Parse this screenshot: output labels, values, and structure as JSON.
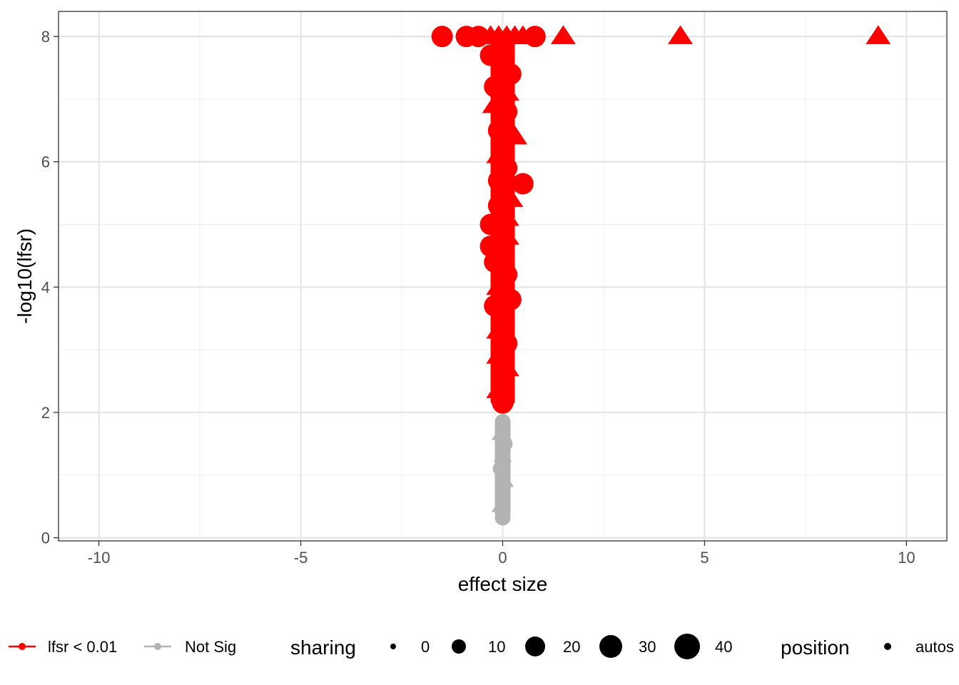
{
  "chart_data": {
    "type": "scatter",
    "title": "",
    "xlabel": "effect size",
    "ylabel": "-log10(lfsr)",
    "xlim": [
      -11,
      11
    ],
    "ylim": [
      -0.05,
      8.4
    ],
    "x_ticks": [
      -10,
      -5,
      0,
      5,
      10
    ],
    "x_tick_labels": [
      "-10",
      "-5",
      "0",
      "5",
      "10"
    ],
    "y_ticks": [
      0,
      2,
      4,
      6,
      8
    ],
    "y_tick_labels": [
      "0",
      "2",
      "4",
      "6",
      "8"
    ],
    "grid": true,
    "legend_position": "bottom",
    "legend": {
      "color_items": [
        {
          "label": "lfsr < 0.01",
          "color": "#ff0000"
        },
        {
          "label": "Not Sig",
          "color": "#b3b3b3"
        }
      ],
      "size_title": "sharing",
      "size_items": [
        "0",
        "10",
        "20",
        "30",
        "40"
      ],
      "shape_title": "position",
      "shape_items": [
        "autos"
      ]
    },
    "series": [
      {
        "name": "lfsr < 0.01",
        "color": "#ff0000",
        "points": [
          {
            "x": -1.5,
            "y": 8.0,
            "shape": "circle"
          },
          {
            "x": -0.9,
            "y": 8.0,
            "shape": "circle"
          },
          {
            "x": -0.6,
            "y": 8.0,
            "shape": "circle"
          },
          {
            "x": -0.3,
            "y": 8.0,
            "shape": "triangle"
          },
          {
            "x": -0.1,
            "y": 8.0,
            "shape": "triangle"
          },
          {
            "x": 0.1,
            "y": 8.0,
            "shape": "triangle"
          },
          {
            "x": 0.3,
            "y": 8.0,
            "shape": "triangle"
          },
          {
            "x": 0.5,
            "y": 8.0,
            "shape": "triangle"
          },
          {
            "x": 0.8,
            "y": 8.0,
            "shape": "circle"
          },
          {
            "x": 1.5,
            "y": 8.0,
            "shape": "triangle"
          },
          {
            "x": 4.4,
            "y": 8.0,
            "shape": "triangle"
          },
          {
            "x": 9.3,
            "y": 8.0,
            "shape": "triangle"
          },
          {
            "x": -0.3,
            "y": 7.7,
            "shape": "circle"
          },
          {
            "x": 0.2,
            "y": 7.4,
            "shape": "circle"
          },
          {
            "x": -0.2,
            "y": 7.2,
            "shape": "circle"
          },
          {
            "x": 0.1,
            "y": 7.1,
            "shape": "triangle"
          },
          {
            "x": -0.2,
            "y": 6.9,
            "shape": "triangle"
          },
          {
            "x": 0.1,
            "y": 6.8,
            "shape": "circle"
          },
          {
            "x": -0.1,
            "y": 6.5,
            "shape": "circle"
          },
          {
            "x": 0.3,
            "y": 6.4,
            "shape": "triangle"
          },
          {
            "x": -0.1,
            "y": 6.1,
            "shape": "triangle"
          },
          {
            "x": 0.1,
            "y": 5.9,
            "shape": "circle"
          },
          {
            "x": -0.1,
            "y": 5.7,
            "shape": "circle"
          },
          {
            "x": 0.5,
            "y": 5.65,
            "shape": "circle"
          },
          {
            "x": 0.2,
            "y": 5.4,
            "shape": "triangle"
          },
          {
            "x": -0.1,
            "y": 5.3,
            "shape": "circle"
          },
          {
            "x": 0.1,
            "y": 5.1,
            "shape": "triangle"
          },
          {
            "x": -0.3,
            "y": 5.0,
            "shape": "circle"
          },
          {
            "x": 0.1,
            "y": 4.8,
            "shape": "triangle"
          },
          {
            "x": -0.3,
            "y": 4.65,
            "shape": "circle"
          },
          {
            "x": 0.0,
            "y": 4.5,
            "shape": "triangle"
          },
          {
            "x": -0.2,
            "y": 4.4,
            "shape": "circle"
          },
          {
            "x": 0.1,
            "y": 4.2,
            "shape": "circle"
          },
          {
            "x": -0.1,
            "y": 4.0,
            "shape": "triangle"
          },
          {
            "x": 0.2,
            "y": 3.8,
            "shape": "circle"
          },
          {
            "x": -0.2,
            "y": 3.7,
            "shape": "circle"
          },
          {
            "x": 0.0,
            "y": 3.5,
            "shape": "triangle"
          },
          {
            "x": -0.1,
            "y": 3.3,
            "shape": "triangle"
          },
          {
            "x": 0.1,
            "y": 3.1,
            "shape": "circle"
          },
          {
            "x": -0.1,
            "y": 2.9,
            "shape": "triangle"
          },
          {
            "x": 0.1,
            "y": 2.7,
            "shape": "triangle"
          },
          {
            "x": 0.0,
            "y": 2.55,
            "shape": "circle"
          },
          {
            "x": -0.1,
            "y": 2.35,
            "shape": "triangle"
          },
          {
            "x": 0.0,
            "y": 2.15,
            "shape": "circle"
          }
        ]
      },
      {
        "name": "Not Sig",
        "color": "#b3b3b3",
        "points": [
          {
            "x": 0.0,
            "y": 1.85,
            "shape": "circle"
          },
          {
            "x": -0.05,
            "y": 1.65,
            "shape": "triangle"
          },
          {
            "x": 0.05,
            "y": 1.5,
            "shape": "circle"
          },
          {
            "x": 0.0,
            "y": 1.3,
            "shape": "triangle"
          },
          {
            "x": -0.05,
            "y": 1.1,
            "shape": "circle"
          },
          {
            "x": 0.05,
            "y": 0.9,
            "shape": "triangle"
          },
          {
            "x": 0.0,
            "y": 0.7,
            "shape": "circle"
          },
          {
            "x": -0.05,
            "y": 0.5,
            "shape": "triangle"
          },
          {
            "x": 0.0,
            "y": 0.32,
            "shape": "circle"
          }
        ]
      }
    ]
  }
}
